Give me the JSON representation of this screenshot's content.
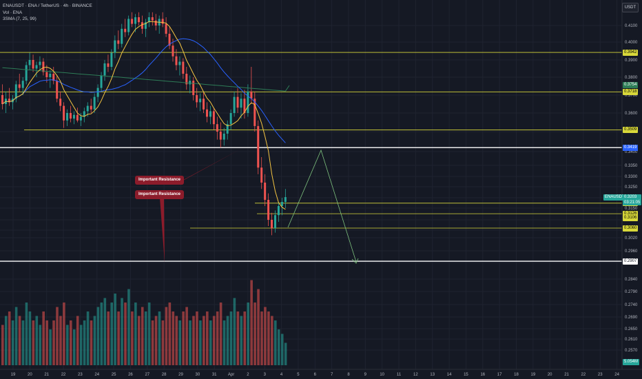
{
  "header": {
    "symbol_line": "ENAUSDT · ENA / TetherUS · 4h · BINANCE",
    "volume_line": "Vol · ENA",
    "sma_line": "3SMA (7, 25, 99)"
  },
  "currency_button": "USDT",
  "price_axis": {
    "ticks": [
      "0.4100",
      "0.4000",
      "0.3900",
      "0.3800",
      "0.3700",
      "0.3600",
      "0.3500",
      "0.3400",
      "0.3350",
      "0.3300",
      "0.3250",
      "0.3200",
      "0.3150",
      "0.3100",
      "0.3050",
      "0.3020",
      "0.2960",
      "0.2900",
      "0.2840",
      "0.2790",
      "0.2740",
      "0.2690",
      "0.2650",
      "0.2610",
      "0.2570"
    ]
  },
  "time_axis": {
    "labels": [
      "19",
      "20",
      "21",
      "22",
      "23",
      "24",
      "25",
      "26",
      "27",
      "28",
      "29",
      "30",
      "31",
      "Apr",
      "2",
      "3",
      "4",
      "5",
      "6",
      "7",
      "8",
      "9",
      "10",
      "11",
      "12",
      "13",
      "14",
      "15",
      "16",
      "17",
      "18",
      "19",
      "20",
      "21",
      "22",
      "23",
      "24"
    ]
  },
  "levels": [
    {
      "price": "0.3942",
      "color": "#d8d83a",
      "style": "yellow"
    },
    {
      "price": "0.3754",
      "color": "#2e7d57",
      "style": "green"
    },
    {
      "price": "0.3718",
      "color": "#d8d83a",
      "style": "yellow"
    },
    {
      "price": "0.3509",
      "color": "#d8d83a",
      "style": "yellow"
    },
    {
      "price": "0.3420",
      "color": "#ffffff",
      "style": "white"
    },
    {
      "price": "0.3419",
      "color": "#2962ff",
      "style": "blue"
    },
    {
      "price": "0.3174",
      "color": "#d8d83a",
      "style": "yellow"
    },
    {
      "price": "0.3126",
      "color": "#d8d83a",
      "style": "yellow"
    },
    {
      "price": "0.3106",
      "color": "#d8d83a",
      "style": "yellow"
    },
    {
      "price": "0.3060",
      "color": "#d8d83a",
      "style": "yellow"
    },
    {
      "price": "0.2907",
      "color": "#ffffff",
      "style": "white"
    }
  ],
  "current_price": {
    "symbol": "ENAUSDT",
    "price": "0.3203",
    "countdown": "03:21:05",
    "color": "#26a69a"
  },
  "volume_label": "5.054M",
  "annotations": [
    {
      "text": "Important Resistance"
    },
    {
      "text": "Important Resistance"
    }
  ],
  "colors": {
    "background": "#151924",
    "up": "#26a69a",
    "down": "#ef5350",
    "sma7": "#f5c542",
    "sma25": "#2962ff",
    "sma99": "#2e7d57",
    "projection": "#7fc47f"
  }
}
